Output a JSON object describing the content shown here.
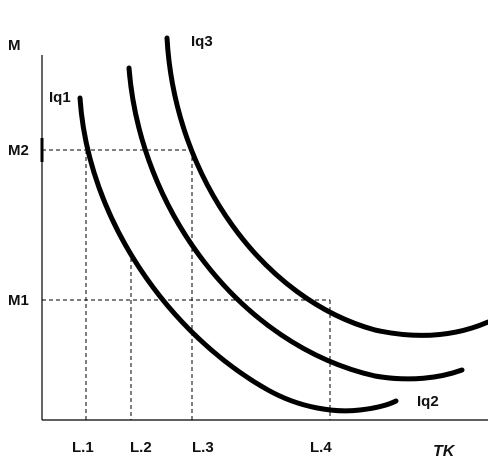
{
  "axes": {
    "y_label": "M",
    "x_label": "TK"
  },
  "y_ticks": {
    "m1": "M1",
    "m2": "M2"
  },
  "x_ticks": {
    "l1": "L.1",
    "l2": "L.2",
    "l3": "L.3",
    "l4": "L.4"
  },
  "curves": {
    "iq1": "Iq1",
    "iq2": "Iq2",
    "iq3": "Iq3"
  },
  "colors": {
    "line": "#000000",
    "background": "#ffffff"
  }
}
